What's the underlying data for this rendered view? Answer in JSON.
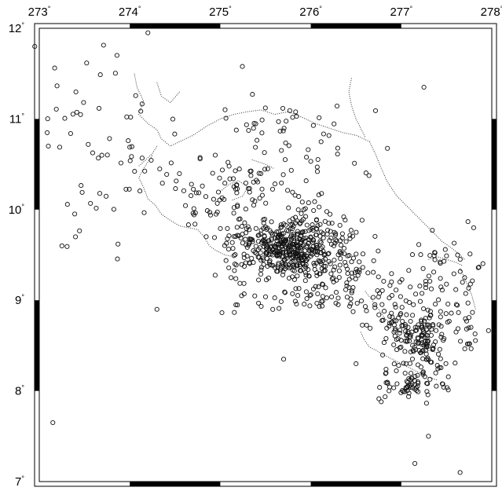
{
  "map": {
    "lon_range": [
      273,
      278
    ],
    "lat_range": [
      7,
      12
    ],
    "lon_ticks": [
      {
        "value": 273,
        "label": "273"
      },
      {
        "value": 274,
        "label": "274"
      },
      {
        "value": 275,
        "label": "275"
      },
      {
        "value": 276,
        "label": "276"
      },
      {
        "value": 277,
        "label": "277"
      },
      {
        "value": 278,
        "label": "278"
      }
    ],
    "lat_ticks": [
      {
        "value": 12,
        "label": "12"
      },
      {
        "value": 11,
        "label": "11"
      },
      {
        "value": 10,
        "label": "10"
      },
      {
        "value": 9,
        "label": "9"
      },
      {
        "value": 8,
        "label": "8"
      },
      {
        "value": 7,
        "label": "7"
      }
    ],
    "degree_symbol": "°",
    "frame": "alternating black/white plain frame",
    "marker_style": "open circle",
    "epicenter_clusters": [
      {
        "lon": 275.72,
        "lat": 9.55,
        "spread_lon": 0.28,
        "spread_lat": 0.22,
        "count": 230
      },
      {
        "lon": 276.05,
        "lat": 9.6,
        "spread_lon": 0.35,
        "spread_lat": 0.3,
        "count": 160
      },
      {
        "lon": 275.3,
        "lat": 9.6,
        "spread_lon": 0.3,
        "spread_lat": 0.25,
        "count": 70
      },
      {
        "lon": 275.45,
        "lat": 10.2,
        "spread_lon": 0.5,
        "spread_lat": 0.3,
        "count": 70
      },
      {
        "lon": 276.3,
        "lat": 9.2,
        "spread_lon": 0.45,
        "spread_lat": 0.35,
        "count": 90
      },
      {
        "lon": 277.2,
        "lat": 8.55,
        "spread_lon": 0.35,
        "spread_lat": 0.3,
        "count": 140
      },
      {
        "lon": 277.15,
        "lat": 8.05,
        "spread_lon": 0.3,
        "spread_lat": 0.15,
        "count": 60
      },
      {
        "lon": 277.05,
        "lat": 8.95,
        "spread_lon": 0.45,
        "spread_lat": 0.3,
        "count": 80
      },
      {
        "lon": 277.45,
        "lat": 9.35,
        "spread_lon": 0.5,
        "spread_lat": 0.35,
        "count": 40
      },
      {
        "lon": 274.7,
        "lat": 10.1,
        "spread_lon": 0.5,
        "spread_lat": 0.4,
        "count": 35
      },
      {
        "lon": 274.1,
        "lat": 10.7,
        "spread_lon": 0.5,
        "spread_lat": 0.5,
        "count": 25
      },
      {
        "lon": 275.5,
        "lat": 10.9,
        "spread_lon": 0.6,
        "spread_lat": 0.4,
        "count": 30
      },
      {
        "lon": 276.3,
        "lat": 10.7,
        "spread_lon": 0.5,
        "spread_lat": 0.4,
        "count": 20
      },
      {
        "lon": 273.5,
        "lat": 11.3,
        "spread_lon": 0.4,
        "spread_lat": 0.5,
        "count": 20
      },
      {
        "lon": 273.5,
        "lat": 10.1,
        "spread_lon": 0.4,
        "spread_lat": 0.5,
        "count": 15
      },
      {
        "lon": 275.4,
        "lat": 9.1,
        "spread_lon": 0.5,
        "spread_lat": 0.3,
        "count": 25
      },
      {
        "lon": 277.7,
        "lat": 8.7,
        "spread_lon": 0.2,
        "spread_lat": 0.3,
        "count": 20
      }
    ],
    "epicenter_outliers": [
      {
        "lon": 272.95,
        "lat": 11.8
      },
      {
        "lon": 273.1,
        "lat": 10.7
      },
      {
        "lon": 273.15,
        "lat": 7.65
      },
      {
        "lon": 273.4,
        "lat": 9.7
      },
      {
        "lon": 273.25,
        "lat": 9.6
      },
      {
        "lon": 274.2,
        "lat": 11.95
      },
      {
        "lon": 274.3,
        "lat": 8.9
      },
      {
        "lon": 275.7,
        "lat": 8.35
      },
      {
        "lon": 276.5,
        "lat": 8.3
      },
      {
        "lon": 277.15,
        "lat": 7.2
      },
      {
        "lon": 277.3,
        "lat": 7.5
      },
      {
        "lon": 277.65,
        "lat": 7.1
      },
      {
        "lon": 277.25,
        "lat": 11.35
      },
      {
        "lon": 277.8,
        "lat": 9.8
      },
      {
        "lon": 277.7,
        "lat": 9.25
      }
    ],
    "coastlines": [
      [
        [
          274.05,
          11.5
        ],
        [
          274.08,
          11.35
        ],
        [
          274.15,
          11.2
        ],
        [
          274.1,
          11.05
        ],
        [
          274.2,
          10.95
        ],
        [
          274.3,
          10.88
        ],
        [
          274.35,
          10.78
        ],
        [
          274.45,
          10.7
        ],
        [
          274.55,
          10.75
        ],
        [
          274.7,
          10.82
        ],
        [
          274.85,
          10.92
        ],
        [
          275.0,
          11.0
        ],
        [
          275.15,
          11.05
        ],
        [
          275.3,
          11.08
        ],
        [
          275.45,
          11.1
        ],
        [
          275.6,
          11.05
        ],
        [
          275.75,
          11.08
        ],
        [
          275.9,
          11.02
        ],
        [
          276.05,
          10.95
        ],
        [
          276.2,
          10.9
        ],
        [
          276.35,
          10.85
        ],
        [
          276.5,
          10.82
        ],
        [
          276.65,
          10.75
        ]
      ],
      [
        [
          274.3,
          11.4
        ],
        [
          274.35,
          11.25
        ],
        [
          274.45,
          11.18
        ],
        [
          274.55,
          11.3
        ]
      ],
      [
        [
          274.25,
          10.6
        ],
        [
          274.15,
          10.45
        ],
        [
          274.1,
          10.35
        ],
        [
          274.15,
          10.25
        ],
        [
          274.2,
          10.12
        ],
        [
          274.28,
          10.05
        ],
        [
          274.35,
          9.95
        ],
        [
          274.45,
          9.88
        ],
        [
          274.55,
          9.82
        ],
        [
          274.65,
          9.8
        ],
        [
          274.75,
          9.78
        ],
        [
          274.82,
          9.7
        ],
        [
          274.88,
          9.6
        ],
        [
          274.95,
          9.55
        ],
        [
          275.05,
          9.5
        ],
        [
          275.15,
          9.48
        ]
      ],
      [
        [
          274.1,
          10.48
        ],
        [
          274.18,
          10.55
        ],
        [
          274.25,
          10.62
        ],
        [
          274.3,
          10.7
        ]
      ],
      [
        [
          276.65,
          10.75
        ],
        [
          276.72,
          10.6
        ],
        [
          276.78,
          10.45
        ],
        [
          276.85,
          10.3
        ],
        [
          276.95,
          10.15
        ],
        [
          277.05,
          10.05
        ],
        [
          277.15,
          9.95
        ],
        [
          277.25,
          9.85
        ],
        [
          277.35,
          9.75
        ],
        [
          277.45,
          9.65
        ],
        [
          277.55,
          9.58
        ],
        [
          277.65,
          9.5
        ],
        [
          277.7,
          9.45
        ]
      ],
      [
        [
          276.45,
          11.45
        ],
        [
          276.42,
          11.3
        ],
        [
          276.45,
          11.15
        ],
        [
          276.5,
          11.0
        ],
        [
          276.55,
          10.9
        ],
        [
          276.6,
          10.8
        ]
      ],
      [
        [
          276.6,
          9.1
        ],
        [
          276.68,
          9.0
        ],
        [
          276.75,
          8.9
        ],
        [
          276.82,
          8.8
        ],
        [
          276.9,
          8.72
        ],
        [
          277.0,
          8.65
        ],
        [
          277.1,
          8.6
        ],
        [
          277.2,
          8.52
        ],
        [
          277.3,
          8.45
        ],
        [
          277.4,
          8.42
        ]
      ],
      [
        [
          276.55,
          8.65
        ],
        [
          276.6,
          8.55
        ],
        [
          276.65,
          8.48
        ],
        [
          276.72,
          8.45
        ],
        [
          276.8,
          8.4
        ],
        [
          276.9,
          8.35
        ],
        [
          277.0,
          8.3
        ],
        [
          277.1,
          8.25
        ],
        [
          277.2,
          8.2
        ],
        [
          277.3,
          8.15
        ],
        [
          277.4,
          8.12
        ]
      ],
      [
        [
          277.3,
          9.45
        ],
        [
          277.4,
          9.48
        ],
        [
          277.5,
          9.45
        ],
        [
          277.6,
          9.42
        ],
        [
          277.68,
          9.38
        ]
      ],
      [
        [
          277.65,
          9.35
        ],
        [
          277.72,
          9.2
        ],
        [
          277.78,
          9.05
        ],
        [
          277.82,
          8.9
        ]
      ],
      [
        [
          275.0,
          10.2
        ],
        [
          275.1,
          10.28
        ],
        [
          275.2,
          10.32
        ],
        [
          275.3,
          10.25
        ],
        [
          275.25,
          10.15
        ],
        [
          275.12,
          10.1
        ]
      ],
      [
        [
          275.35,
          10.55
        ],
        [
          275.5,
          10.5
        ],
        [
          275.6,
          10.45
        ]
      ]
    ]
  }
}
